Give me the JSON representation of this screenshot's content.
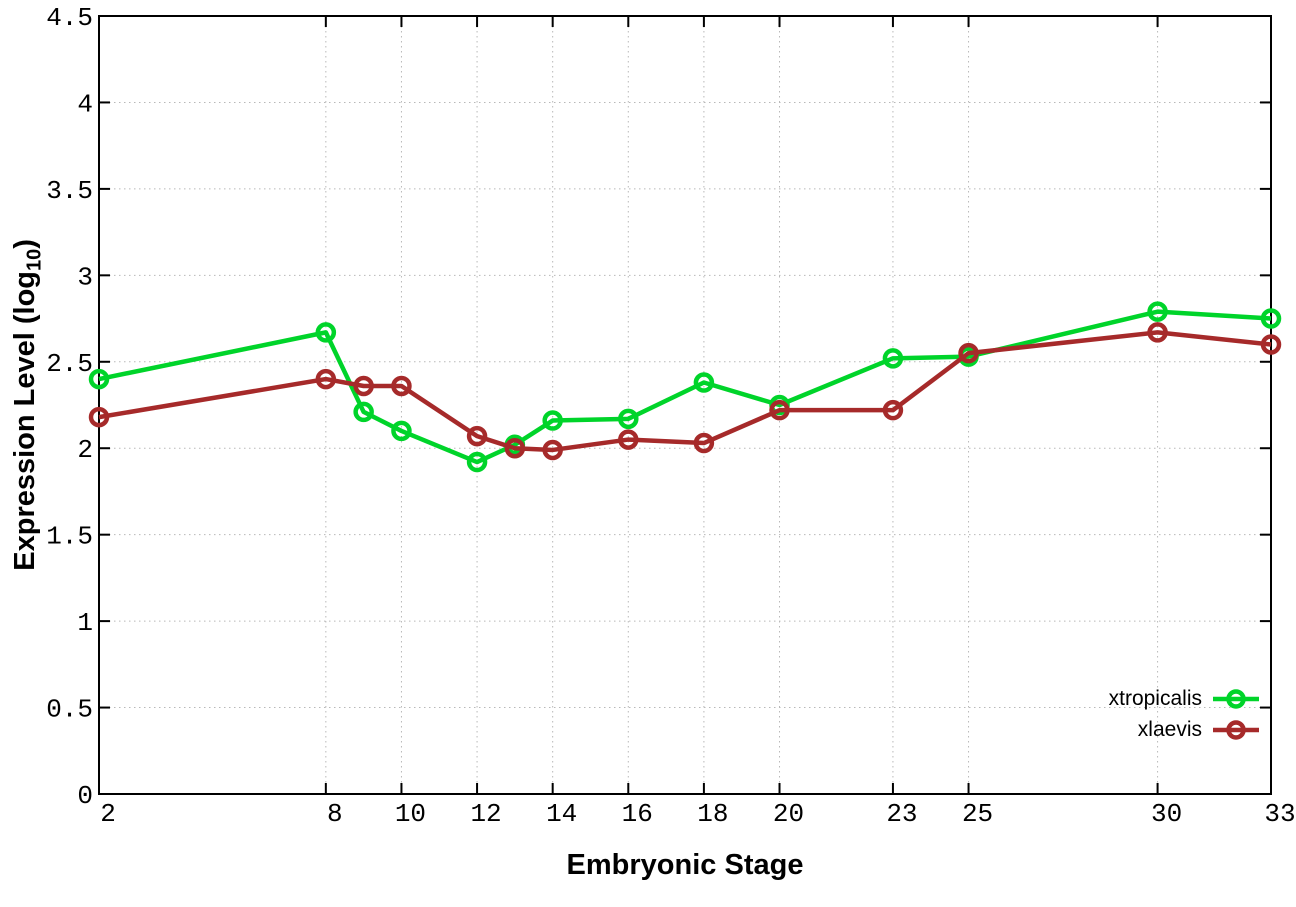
{
  "figure": {
    "background": "#ffffff",
    "border_color": "#000000",
    "grid_color": "#b8b8b8",
    "tick_color": "#000000"
  },
  "axes": {
    "x_title": "Embryonic Stage",
    "y_title_pre": "Expression Level (log",
    "y_title_sub": "10",
    "y_title_post": ")",
    "x_tick_labels": [
      "2",
      "8",
      "10",
      "12",
      "14",
      "16",
      "18",
      "20",
      "23",
      "25",
      "30",
      "33"
    ],
    "y_tick_labels": [
      "0",
      "0.5",
      "1",
      "1.5",
      "2",
      "2.5",
      "3",
      "3.5",
      "4",
      "4.5"
    ]
  },
  "legend": {
    "entries": [
      {
        "label": "xtropicalis",
        "color": "#00d42a"
      },
      {
        "label": "xlaevis",
        "color": "#a62a2a"
      }
    ]
  },
  "chart_data": {
    "type": "line",
    "title": "",
    "xlabel": "Embryonic Stage",
    "ylabel": "Expression Level (log10)",
    "x": [
      2,
      8,
      9,
      10,
      12,
      13,
      14,
      16,
      18,
      20,
      23,
      25,
      30,
      33
    ],
    "x_ticks": [
      2,
      8,
      10,
      12,
      14,
      16,
      18,
      20,
      23,
      25,
      30,
      33
    ],
    "y_ticks": [
      0,
      0.5,
      1,
      1.5,
      2,
      2.5,
      3,
      3.5,
      4,
      4.5
    ],
    "xlim": [
      2,
      33
    ],
    "ylim": [
      0,
      4.5
    ],
    "grid": true,
    "legend_position": "bottom-right",
    "marker": "open-circle",
    "series": [
      {
        "name": "xtropicalis",
        "color": "#00d42a",
        "values": [
          2.4,
          2.67,
          2.21,
          2.1,
          1.92,
          2.02,
          2.16,
          2.17,
          2.38,
          2.25,
          2.52,
          2.53,
          2.79,
          2.75
        ]
      },
      {
        "name": "xlaevis",
        "color": "#a62a2a",
        "values": [
          2.18,
          2.4,
          2.36,
          2.36,
          2.07,
          2.0,
          1.99,
          2.05,
          2.03,
          2.22,
          2.22,
          2.55,
          2.67,
          2.6
        ]
      }
    ]
  }
}
